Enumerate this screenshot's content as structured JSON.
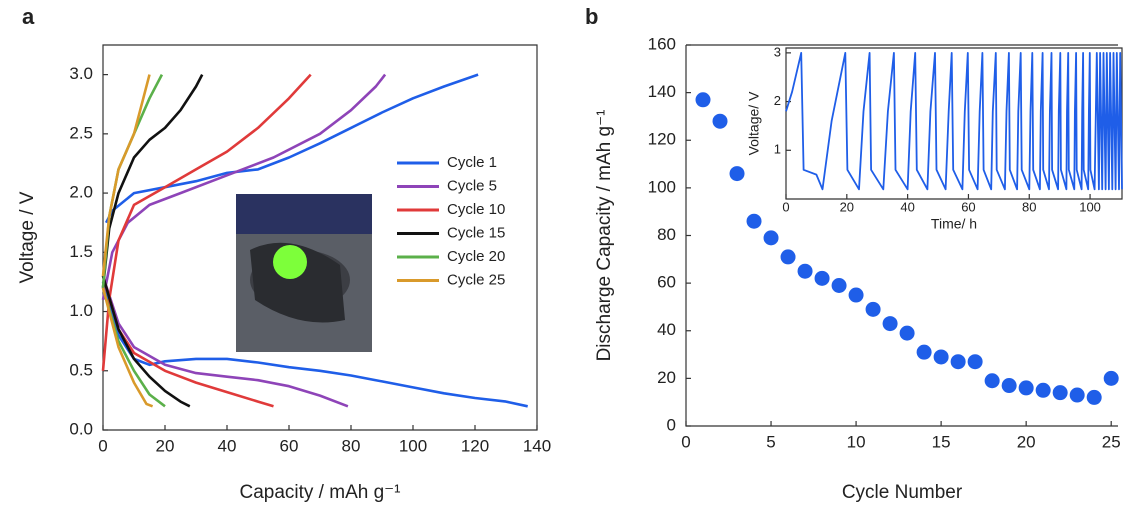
{
  "chart_data": [
    {
      "type": "line",
      "panel_label": "a",
      "xlabel": "Capacity / mAh g⁻¹",
      "ylabel": "Voltage / V",
      "xlim": [
        0,
        140
      ],
      "xticks": [
        0,
        20,
        40,
        60,
        80,
        100,
        120,
        140
      ],
      "ylim": [
        0,
        3.25
      ],
      "yticks": [
        {
          "value": 0,
          "label": "0.0"
        },
        0.5,
        {
          "value": 1,
          "label": "1.0"
        },
        1.5,
        {
          "value": 2,
          "label": "2.0"
        },
        2.5,
        {
          "value": 3,
          "label": "3.0"
        }
      ],
      "legend": "right",
      "series": [
        {
          "name": "Cycle 1",
          "color": "#1f5ee8",
          "x": [
            1,
            3,
            10,
            20,
            30,
            40,
            50,
            60,
            70,
            80,
            90,
            100,
            110,
            121,
            null,
            0,
            5,
            10,
            15,
            20,
            30,
            40,
            50,
            60,
            70,
            80,
            90,
            100,
            110,
            120,
            130,
            137
          ],
          "values": [
            1.75,
            1.85,
            2.0,
            2.05,
            2.1,
            2.17,
            2.2,
            2.3,
            2.42,
            2.55,
            2.68,
            2.8,
            2.9,
            3.0,
            null,
            1.25,
            0.8,
            0.6,
            0.55,
            0.58,
            0.6,
            0.6,
            0.57,
            0.53,
            0.5,
            0.46,
            0.41,
            0.36,
            0.31,
            0.27,
            0.24,
            0.2
          ]
        },
        {
          "name": "Cycle 5",
          "color": "#8e44b8",
          "x": [
            0,
            3,
            8,
            15,
            25,
            40,
            55,
            70,
            80,
            88,
            91,
            null,
            0,
            5,
            10,
            20,
            30,
            40,
            50,
            60,
            70,
            79
          ],
          "values": [
            1.1,
            1.5,
            1.75,
            1.9,
            2.0,
            2.15,
            2.3,
            2.5,
            2.7,
            2.9,
            3.0,
            null,
            1.3,
            0.9,
            0.7,
            0.55,
            0.48,
            0.45,
            0.42,
            0.37,
            0.29,
            0.2
          ]
        },
        {
          "name": "Cycle 10",
          "color": "#e03a3a",
          "x": [
            0,
            2,
            5,
            10,
            20,
            30,
            40,
            50,
            60,
            67,
            null,
            0,
            5,
            10,
            20,
            30,
            40,
            50,
            55
          ],
          "values": [
            0.5,
            1.1,
            1.6,
            1.9,
            2.05,
            2.2,
            2.35,
            2.55,
            2.8,
            3.0,
            null,
            1.3,
            0.85,
            0.65,
            0.5,
            0.4,
            0.32,
            0.24,
            0.2
          ]
        },
        {
          "name": "Cycle 15",
          "color": "#111111",
          "x": [
            0,
            2,
            5,
            10,
            15,
            20,
            25,
            30,
            32,
            null,
            0,
            5,
            10,
            15,
            20,
            25,
            28
          ],
          "values": [
            1.2,
            1.7,
            2.0,
            2.3,
            2.45,
            2.55,
            2.7,
            2.9,
            3.0,
            null,
            1.3,
            0.85,
            0.6,
            0.45,
            0.33,
            0.24,
            0.2
          ]
        },
        {
          "name": "Cycle 20",
          "color": "#5bb04a",
          "x": [
            0,
            2,
            5,
            10,
            15,
            19,
            null,
            0,
            5,
            10,
            15,
            20
          ],
          "values": [
            1.2,
            1.8,
            2.2,
            2.5,
            2.8,
            3.0,
            null,
            1.2,
            0.75,
            0.5,
            0.3,
            0.2
          ]
        },
        {
          "name": "Cycle 25",
          "color": "#d99a2b",
          "x": [
            0,
            2,
            5,
            10,
            13,
            15,
            null,
            0,
            5,
            10,
            14,
            16
          ],
          "values": [
            1.3,
            1.8,
            2.2,
            2.5,
            2.8,
            3.0,
            null,
            1.2,
            0.7,
            0.4,
            0.22,
            0.2
          ]
        }
      ]
    },
    {
      "type": "scatter",
      "panel_label": "b",
      "xlabel": "Cycle Number",
      "ylabel": "Discharge Capacity / mAh g⁻¹",
      "xlim": [
        0,
        25.4
      ],
      "xticks": [
        0,
        5,
        10,
        15,
        20,
        25
      ],
      "ylim": [
        0,
        160
      ],
      "yticks": [
        0,
        20,
        40,
        60,
        80,
        100,
        120,
        140,
        160
      ],
      "color": "#1f5ee8",
      "x": [
        1,
        2,
        3,
        4,
        5,
        6,
        7,
        8,
        9,
        10,
        11,
        12,
        13,
        14,
        15,
        16,
        17,
        18,
        19,
        20,
        21,
        22,
        23,
        24,
        25
      ],
      "values": [
        137,
        128,
        106,
        86,
        79,
        71,
        65,
        62,
        59,
        55,
        49,
        43,
        39,
        31,
        29,
        27,
        27,
        19,
        17,
        16,
        15,
        14,
        13,
        12,
        20
      ]
    },
    {
      "type": "line",
      "xlabel": "Time/ h",
      "ylabel": "Voltage/ V",
      "xlim": [
        0,
        110.5
      ],
      "xticks": [
        0,
        20,
        40,
        60,
        80,
        100
      ],
      "ylim": [
        0,
        3.1
      ],
      "yticks": [
        1,
        2,
        3
      ],
      "series": [
        {
          "color": "#1f5ee8",
          "x": [
            0,
            2,
            5,
            5.8,
            10,
            12,
            15,
            19.5,
            20.2,
            24,
            25.5,
            27.5,
            28,
            32,
            33.5,
            35.5,
            36,
            40,
            41,
            42.5,
            43,
            46.5,
            47.5,
            49,
            49.5,
            52.5,
            53.5,
            54.5,
            55,
            58,
            58.8,
            59.8,
            60.2,
            63,
            63.7,
            64.6,
            65,
            67.5,
            68,
            69,
            69.3,
            72,
            72.5,
            73.3,
            73.6,
            76,
            76.4,
            77.2,
            77.5,
            80,
            80.4,
            81,
            81.3,
            83.5,
            83.8,
            84.4,
            84.6,
            86.5,
            86.8,
            87.3,
            87.5,
            89.5,
            89.7,
            90.2,
            90.4,
            92.2,
            92.4,
            92.8,
            93,
            94.8,
            95,
            95.4,
            95.6,
            97.2,
            97.4,
            97.7,
            97.9,
            99.4,
            99.6,
            99.9,
            100.1,
            101.5,
            102.2,
            102.9,
            103.3,
            104,
            104.4,
            105.1,
            105.5,
            106.2,
            106.6,
            107.3,
            107.7,
            108.4,
            108.8,
            109.5,
            109.9,
            110.5
          ],
          "values": [
            1.8,
            2.2,
            3.0,
            0.6,
            0.5,
            0.2,
            1.6,
            3.0,
            0.6,
            0.2,
            1.8,
            3.0,
            0.6,
            0.2,
            1.8,
            3.0,
            0.6,
            0.2,
            1.8,
            3.0,
            0.6,
            0.2,
            1.8,
            3.0,
            0.6,
            0.2,
            1.8,
            3.0,
            0.6,
            0.2,
            1.8,
            3.0,
            0.6,
            0.2,
            1.8,
            3.0,
            0.6,
            0.2,
            1.8,
            3.0,
            0.6,
            0.2,
            1.8,
            3.0,
            0.6,
            0.2,
            1.8,
            3.0,
            0.6,
            0.2,
            1.8,
            3.0,
            0.6,
            0.2,
            1.8,
            3.0,
            0.6,
            0.2,
            1.8,
            3.0,
            0.6,
            0.2,
            1.8,
            3.0,
            0.6,
            0.2,
            1.8,
            3.0,
            0.6,
            0.2,
            1.8,
            3.0,
            0.6,
            0.2,
            1.8,
            3.0,
            0.6,
            0.2,
            1.8,
            3.0,
            0.6,
            0.2,
            3.0,
            0.2,
            3.0,
            0.2,
            3.0,
            0.2,
            3.0,
            0.2,
            3.0,
            0.2,
            3.0,
            0.2,
            3.0,
            0.2,
            3.0,
            0.2
          ]
        }
      ]
    }
  ]
}
